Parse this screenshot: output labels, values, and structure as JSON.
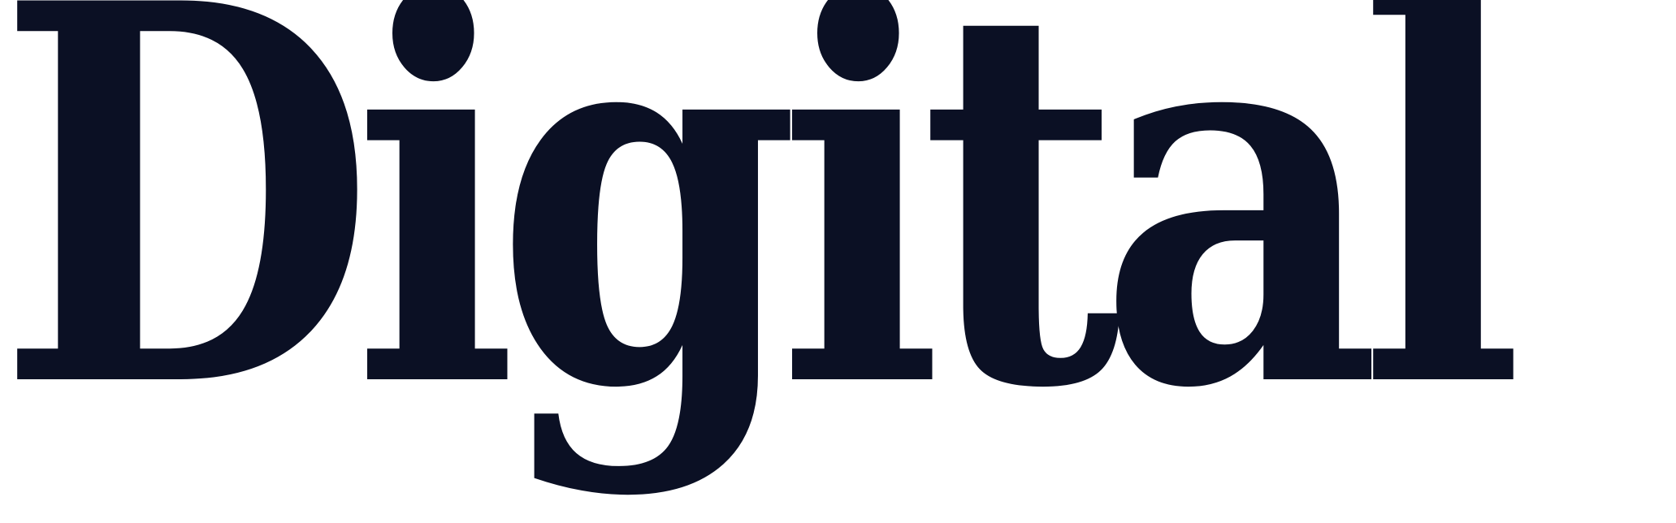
{
  "wordmark": {
    "text": "Digital"
  },
  "colors": {
    "text": "#0b1024",
    "background": "#ffffff"
  }
}
